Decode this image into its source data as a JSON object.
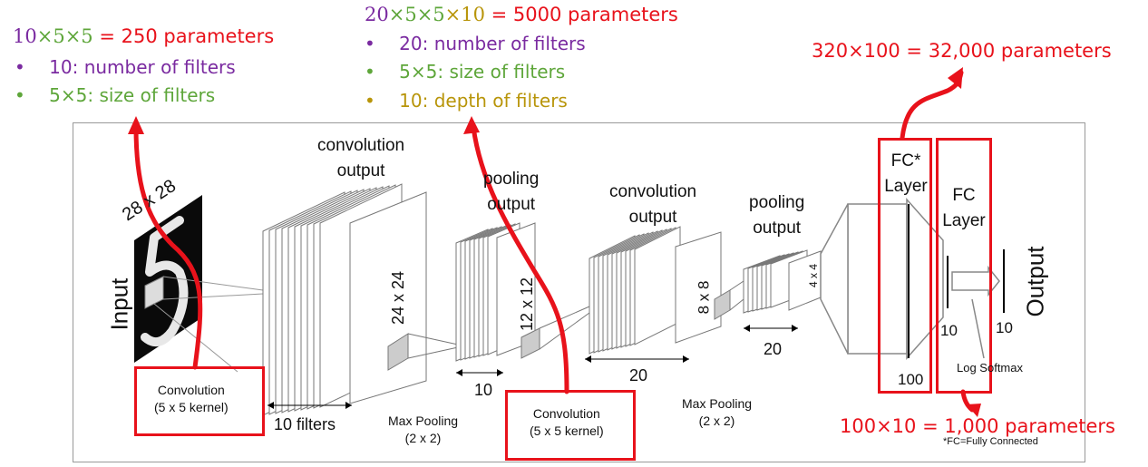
{
  "annotations": {
    "conv1": {
      "eq_a": "10",
      "eq_b": "×5×5",
      "eq_c": " = 250 parameters",
      "bullet1": "10: number of filters",
      "bullet2": "5×5: size of filters"
    },
    "conv2": {
      "eq_a": "20",
      "eq_b": "×5×5",
      "eq_c": "×10",
      "eq_d": " = 5000 parameters",
      "bullet1": "20: number of filters",
      "bullet2": "5×5: size of filters",
      "bullet3": "10: depth of filters"
    },
    "fc1": "320×100 = 32,000 parameters",
    "fc2": "100×10 = 1,000 parameters",
    "bullet_char": "•"
  },
  "diagram": {
    "input_label": "Input",
    "input_size": "28 x 28",
    "conv1_title": [
      "convolution",
      "output"
    ],
    "conv1_size": "24 x 24",
    "conv1_filters": "10 filters",
    "conv1_op": [
      "Convolution",
      "(5 x 5 kernel)"
    ],
    "pool1_title": [
      "pooling",
      "output"
    ],
    "pool1_size": "12 x 12",
    "pool1_depth": "10",
    "pool1_op": [
      "Max Pooling",
      "(2 x 2)"
    ],
    "conv2_title": [
      "convolution",
      "output"
    ],
    "conv2_size": "8 x 8",
    "conv2_depth": "20",
    "conv2_op": [
      "Convolution",
      "(5 x 5 kernel)"
    ],
    "pool2_title": [
      "pooling",
      "output"
    ],
    "pool2_size": "4 x 4",
    "pool2_depth": "20",
    "pool2_op": [
      "Max Pooling",
      "(2 x 2)"
    ],
    "fc1_title": [
      "FC*",
      "Layer"
    ],
    "fc1_size": "100",
    "fc2_title": [
      "FC",
      "Layer"
    ],
    "fc2_size": "10",
    "output_size": "10",
    "softmax": "Log Softmax",
    "output_label": "Output",
    "footnote": "*FC=Fully Connected"
  },
  "colors": {
    "red": "#e8121b",
    "purple": "#7a2aa0",
    "green": "#5ea63a",
    "gold": "#b8950a"
  }
}
